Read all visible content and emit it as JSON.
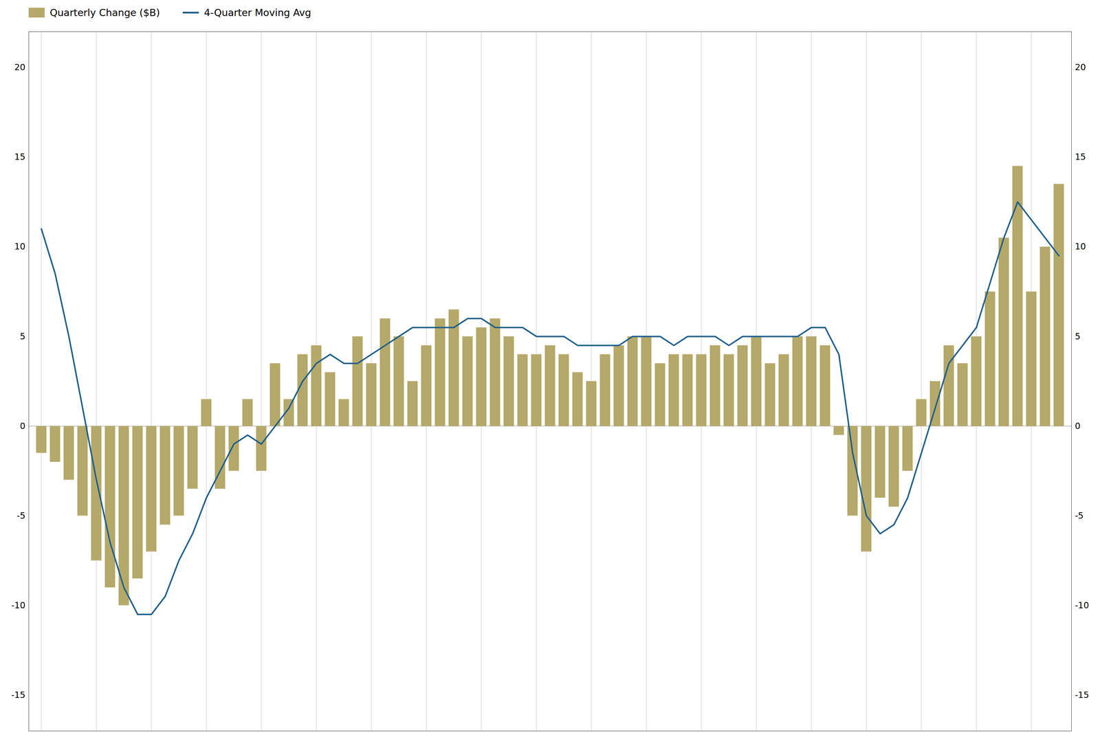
{
  "chart_data": {
    "type": "bar",
    "categories": [
      null,
      null,
      null,
      null,
      null,
      null,
      null,
      null,
      null,
      null,
      null,
      null,
      null,
      null,
      null,
      null,
      null,
      null,
      null,
      null,
      null,
      null,
      null,
      null,
      null,
      null,
      null,
      null,
      null,
      null,
      null,
      null,
      null,
      null,
      null,
      null,
      null,
      null,
      null,
      null,
      null,
      null,
      null,
      null,
      null,
      null,
      null,
      null,
      null,
      null,
      null,
      null,
      null,
      null,
      null,
      null,
      null,
      null,
      null,
      null,
      null,
      null,
      null,
      null,
      null,
      null,
      null,
      null,
      null,
      null,
      null,
      null,
      null,
      null,
      null
    ],
    "series": [
      {
        "name": "Quarterly Change ($B)",
        "type": "bar",
        "color": "#b5a96a",
        "values": [
          -1.5,
          -2.0,
          -3.0,
          -5.0,
          -7.5,
          -9.0,
          -10.0,
          -8.5,
          -7.0,
          -5.5,
          -5.0,
          -3.5,
          1.5,
          -3.5,
          -2.5,
          1.5,
          -2.5,
          3.5,
          1.5,
          4.0,
          4.5,
          3.0,
          1.5,
          5.0,
          3.5,
          6.0,
          5.0,
          2.5,
          4.5,
          6.0,
          6.5,
          5.0,
          5.5,
          6.0,
          5.0,
          4.0,
          4.0,
          4.5,
          4.0,
          3.0,
          2.5,
          4.0,
          4.5,
          5.0,
          5.0,
          3.5,
          4.0,
          4.0,
          4.0,
          4.5,
          4.0,
          4.5,
          5.0,
          3.5,
          4.0,
          5.0,
          5.0,
          4.5,
          -0.5,
          -5.0,
          -7.0,
          -4.0,
          -4.5,
          -2.5,
          1.5,
          2.5,
          4.5,
          3.5,
          5.0,
          7.5,
          10.5,
          14.5,
          7.5,
          10.0,
          13.5
        ]
      },
      {
        "name": "4-Quarter Moving Avg",
        "type": "line",
        "color": "#1f5f8b",
        "values": [
          11.0,
          8.5,
          5.0,
          1.0,
          -3.0,
          -6.5,
          -9.0,
          -10.5,
          -10.5,
          -9.5,
          -7.5,
          -6.0,
          -4.0,
          -2.5,
          -1.0,
          -0.5,
          -1.0,
          0.0,
          1.0,
          2.5,
          3.5,
          4.0,
          3.5,
          3.5,
          4.0,
          4.5,
          5.0,
          5.5,
          5.5,
          5.5,
          5.5,
          6.0,
          6.0,
          5.5,
          5.5,
          5.5,
          5.0,
          5.0,
          5.0,
          4.5,
          4.5,
          4.5,
          4.5,
          5.0,
          5.0,
          5.0,
          4.5,
          5.0,
          5.0,
          5.0,
          4.5,
          5.0,
          5.0,
          5.0,
          5.0,
          5.0,
          5.5,
          5.5,
          4.0,
          -1.5,
          -5.0,
          -6.0,
          -5.5,
          -4.0,
          -1.5,
          1.0,
          3.5,
          4.5,
          5.5,
          8.0,
          10.5,
          12.5,
          11.5,
          10.5,
          9.5
        ]
      }
    ],
    "ylim": [
      -17,
      22
    ],
    "yticks": [
      -15,
      -10,
      -5,
      0,
      5,
      10,
      15,
      20
    ],
    "grid": "x",
    "legend": "top-left",
    "tick_labels": "y"
  }
}
